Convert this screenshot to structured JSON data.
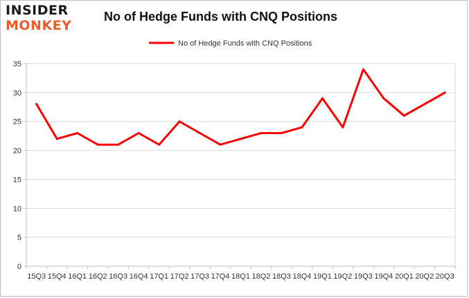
{
  "logo": {
    "line1": "INSIDER",
    "line2": "MONKEY"
  },
  "chart_data": {
    "type": "line",
    "title": "No of Hedge Funds with CNQ Positions",
    "categories": [
      "15Q3",
      "15Q4",
      "16Q1",
      "16Q2",
      "16Q3",
      "16Q4",
      "17Q1",
      "17Q2",
      "17Q3",
      "17Q4",
      "18Q1",
      "18Q2",
      "18Q3",
      "18Q4",
      "19Q1",
      "19Q2",
      "19Q3",
      "19Q4",
      "20Q1",
      "20Q2",
      "20Q3"
    ],
    "series": [
      {
        "name": "No of Hedge Funds with CNQ Positions",
        "color": "#ff0000",
        "values": [
          28,
          22,
          23,
          21,
          21,
          23,
          21,
          25,
          23,
          21,
          22,
          23,
          23,
          24,
          29,
          24,
          34,
          29,
          26,
          28,
          30
        ]
      }
    ],
    "ylim": [
      0,
      35
    ],
    "yticks": [
      0,
      5,
      10,
      15,
      20,
      25,
      30,
      35
    ],
    "grid": true,
    "legend_position": "top-center",
    "xlabel": "",
    "ylabel": ""
  }
}
